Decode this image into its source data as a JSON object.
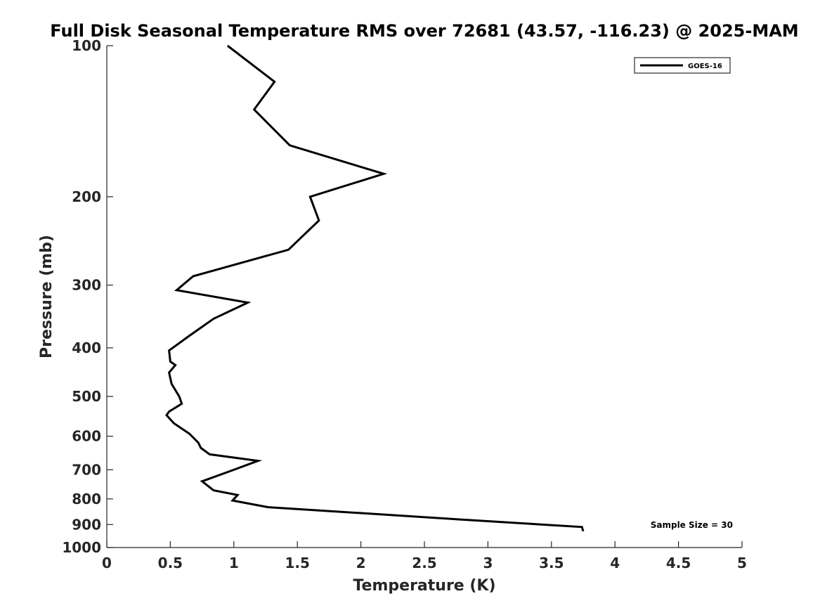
{
  "chart_data": {
    "type": "line",
    "title": "Full Disk Seasonal Temperature RMS over 72681 (43.57, -116.23) @ 2025-MAM",
    "xlabel": "Temperature (K)",
    "ylabel": "Pressure (mb)",
    "xlim": [
      0,
      5
    ],
    "ylim": [
      100,
      1000
    ],
    "yscale": "log",
    "y_reversed": true,
    "x_ticks": [
      "0",
      "0.5",
      "1",
      "1.5",
      "2",
      "2.5",
      "3",
      "3.5",
      "4",
      "4.5",
      "5"
    ],
    "y_ticks": [
      "100",
      "200",
      "300",
      "400",
      "500",
      "600",
      "700",
      "800",
      "900",
      "1000"
    ],
    "grid": false,
    "legend_position": "top-right",
    "annotation": "Sample Size = 30",
    "series": [
      {
        "name": "GOES-16",
        "color": "#000000",
        "x": [
          0.95,
          1.32,
          1.16,
          1.44,
          2.18,
          1.6,
          1.67,
          1.43,
          0.68,
          0.55,
          1.11,
          0.84,
          0.64,
          0.49,
          0.5,
          0.54,
          0.49,
          0.51,
          0.57,
          0.59,
          0.49,
          0.47,
          0.53,
          0.65,
          0.72,
          0.74,
          0.81,
          1.19,
          0.96,
          0.75,
          0.84,
          1.03,
          0.99,
          1.27,
          2.75,
          3.74,
          3.75
        ],
        "y": [
          100,
          118,
          134,
          158,
          180,
          200,
          223,
          255,
          288,
          307,
          325,
          350,
          380,
          405,
          426,
          433,
          448,
          472,
          500,
          517,
          536,
          545,
          566,
          593,
          618,
          633,
          652,
          672,
          706,
          738,
          769,
          786,
          806,
          831,
          878,
          910,
          928
        ]
      }
    ]
  }
}
